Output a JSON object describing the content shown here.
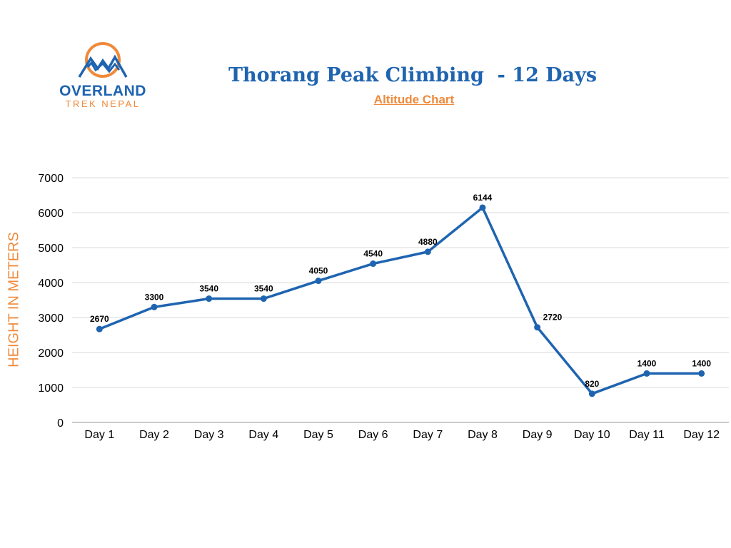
{
  "brand": {
    "name": "OVERLAND",
    "subname": "TREK NEPAL",
    "colors": {
      "blue": "#1f64b0",
      "orange": "#ef8a3b"
    },
    "icon": "mountain-logo-icon"
  },
  "chart_data": {
    "type": "line",
    "title": "Thorang Peak Climbing  - 12 Days",
    "subtitle": "Altitude Chart",
    "xlabel": "",
    "ylabel": "HEIGHT IN METERS",
    "categories": [
      "Day 1",
      "Day 2",
      "Day 3",
      "Day 4",
      "Day 5",
      "Day 6",
      "Day 7",
      "Day 8",
      "Day 9",
      "Day 10",
      "Day 11",
      "Day 12"
    ],
    "values": [
      2670,
      3300,
      3540,
      3540,
      4050,
      4540,
      4880,
      6144,
      2720,
      820,
      1400,
      1400
    ],
    "ylim": [
      0,
      7000
    ],
    "yticks": [
      "0",
      "1000",
      "2000",
      "3000",
      "4000",
      "5000",
      "6000",
      "7000"
    ],
    "grid": true,
    "line_color": "#1f64b0",
    "data_labels": true
  }
}
